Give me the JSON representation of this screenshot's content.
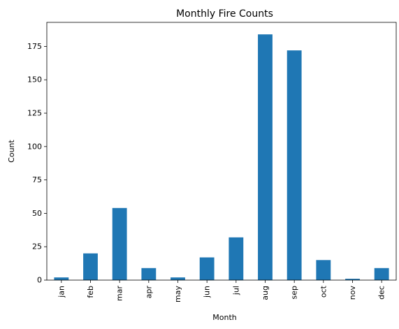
{
  "chart_data": {
    "type": "bar",
    "title": "Monthly Fire Counts",
    "xlabel": "Month",
    "ylabel": "Count",
    "categories": [
      "jan",
      "feb",
      "mar",
      "apr",
      "may",
      "jun",
      "jul",
      "aug",
      "sep",
      "oct",
      "nov",
      "dec"
    ],
    "values": [
      2,
      20,
      54,
      9,
      2,
      17,
      32,
      184,
      172,
      15,
      1,
      9
    ],
    "ylim": [
      0,
      193
    ],
    "yticks": [
      0,
      25,
      50,
      75,
      100,
      125,
      150,
      175
    ],
    "bar_color": "#1f77b4",
    "grid": false,
    "legend": false
  }
}
